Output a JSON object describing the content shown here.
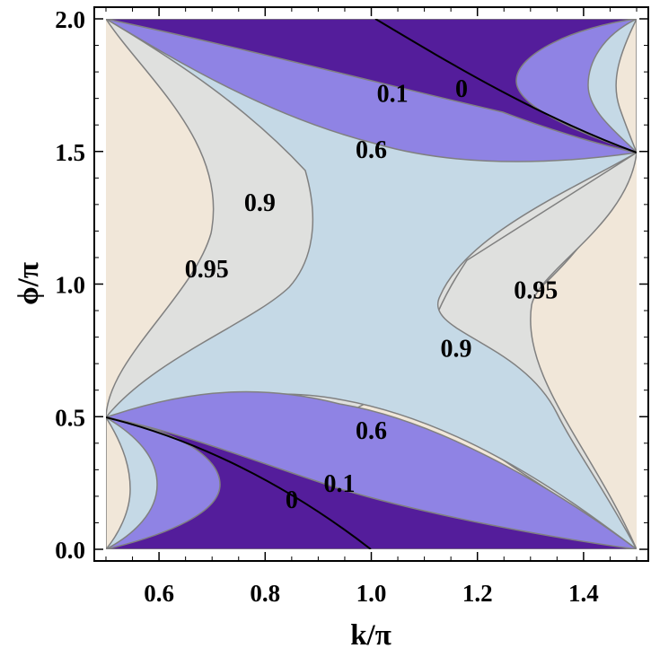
{
  "chart_data": {
    "type": "contour",
    "xlabel": "k/π",
    "ylabel": "ϕ/π",
    "xlim": [
      0.5,
      1.5
    ],
    "ylim": [
      0.0,
      2.0
    ],
    "x_ticks": [
      "0.6",
      "0.8",
      "1.0",
      "1.2",
      "1.4"
    ],
    "x_tick_values": [
      0.6,
      0.8,
      1.0,
      1.2,
      1.4
    ],
    "y_ticks": [
      "0.0",
      "0.5",
      "1.0",
      "1.5",
      "2.0"
    ],
    "y_tick_values": [
      0.0,
      0.5,
      1.0,
      1.5,
      2.0
    ],
    "contour_levels": [
      0,
      0.1,
      0.6,
      0.9,
      0.95
    ],
    "region_colors": {
      "below_0.1": "#541d9b",
      "0.1_to_0.6": "#8f83e4",
      "0.6_to_0.9": "#c5d9e6",
      "0.9_to_0.95": "#dfe0de",
      "above_0.95": "#f1e7d9"
    },
    "line_color": "#808080",
    "contour_labels": [
      {
        "text": "0",
        "x": 1.17,
        "y": 1.74
      },
      {
        "text": "0.1",
        "x": 1.04,
        "y": 1.72
      },
      {
        "text": "0.6",
        "x": 1.0,
        "y": 1.51
      },
      {
        "text": "0.9",
        "x": 0.79,
        "y": 1.31
      },
      {
        "text": "0.95",
        "x": 0.69,
        "y": 1.06
      },
      {
        "text": "0.95",
        "x": 1.31,
        "y": 0.98
      },
      {
        "text": "0.9",
        "x": 1.16,
        "y": 0.76
      },
      {
        "text": "0.6",
        "x": 1.0,
        "y": 0.45
      },
      {
        "text": "0.1",
        "x": 0.94,
        "y": 0.25
      },
      {
        "text": "0",
        "x": 0.85,
        "y": 0.19
      }
    ]
  }
}
